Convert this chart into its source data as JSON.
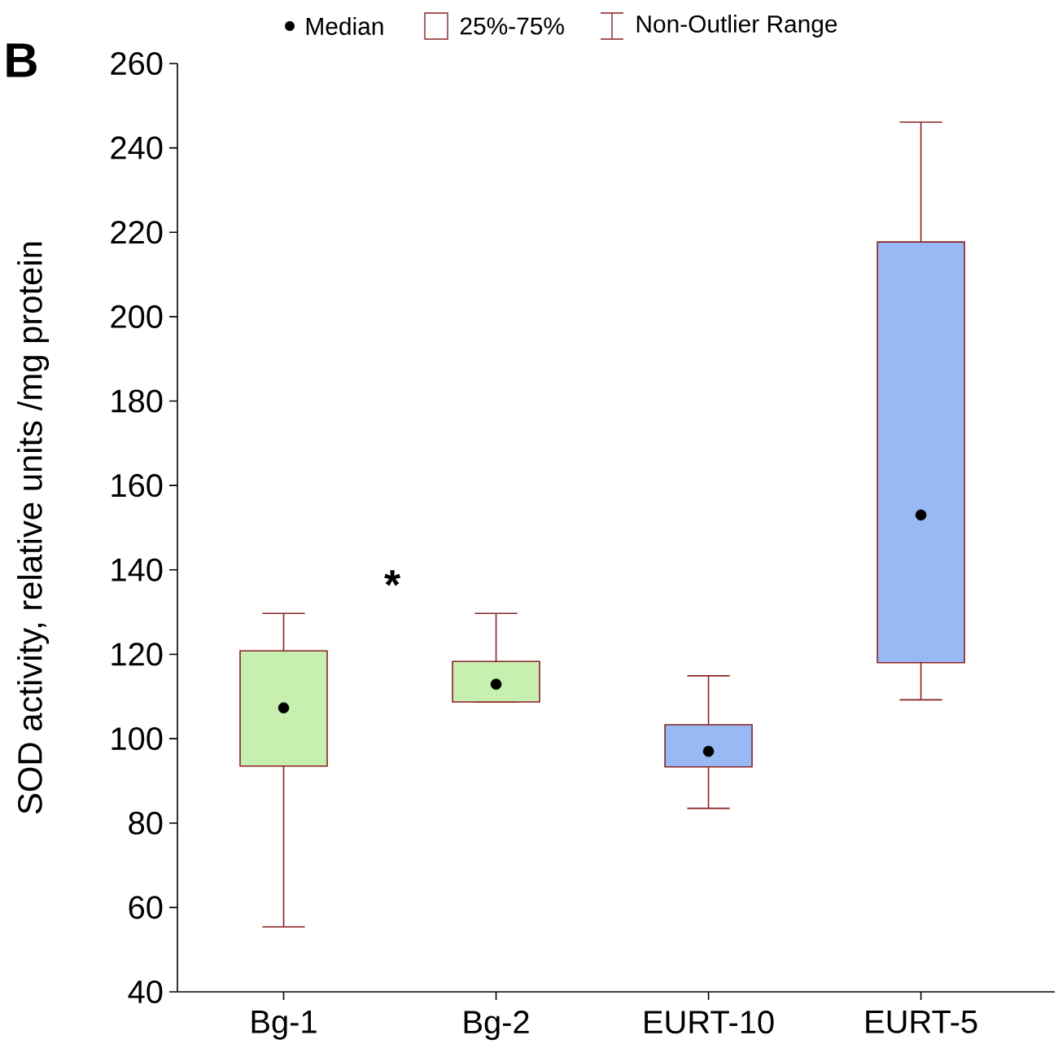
{
  "chart_data": {
    "type": "box",
    "ylabel": "SOD activity,  relative units /mg protein",
    "categories": [
      "Bg-1",
      "Bg-2",
      "EURT-10",
      "EURT-5"
    ],
    "boxes": [
      {
        "low": 55.4,
        "q1": 93.5,
        "median": 107.3,
        "q3": 120.8,
        "high": 129.7
      },
      {
        "low": 108.7,
        "q1": 108.7,
        "median": 112.9,
        "q3": 118.3,
        "high": 129.7
      },
      {
        "low": 83.5,
        "q1": 93.3,
        "median": 97.0,
        "q3": 103.3,
        "high": 114.9
      },
      {
        "low": 109.2,
        "q1": 118.0,
        "median": 153.0,
        "q3": 217.7,
        "high": 246.1
      }
    ],
    "colors": [
      "#c6efb0",
      "#c6efb0",
      "#99b9f5",
      "#99b9f5"
    ],
    "ylim": [
      40,
      260
    ],
    "yticks": [
      40,
      60,
      80,
      100,
      120,
      140,
      160,
      180,
      200,
      220,
      240,
      260
    ],
    "annotations": [
      "Median",
      "25%-75%",
      "Non-Outlier Range",
      "*",
      "B"
    ]
  }
}
